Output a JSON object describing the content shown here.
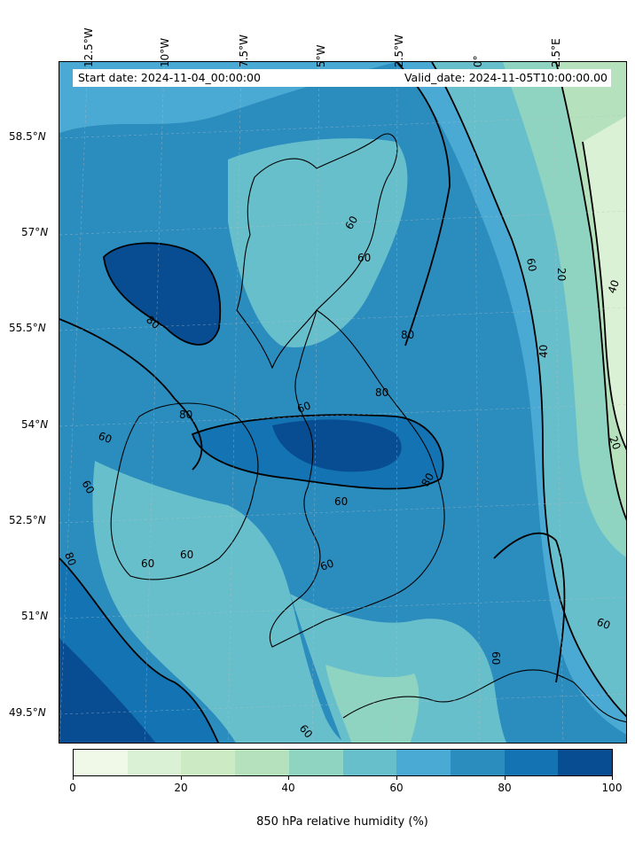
{
  "map": {
    "title_start": "Start date: 2024-11-04_00:00:00",
    "title_valid": "Valid_date: 2024-11-05T10:00:00.00",
    "lon_labels": [
      "12.5°W",
      "10°W",
      "7.5°W",
      "5°W",
      "2.5°W",
      "0°",
      "2.5°E"
    ],
    "lat_labels": [
      {
        "deg": "58.5°",
        "hemi": "N"
      },
      {
        "deg": "57°",
        "hemi": "N"
      },
      {
        "deg": "55.5°",
        "hemi": "N"
      },
      {
        "deg": "54°",
        "hemi": "N"
      },
      {
        "deg": "52.5°",
        "hemi": "N"
      },
      {
        "deg": "51°",
        "hemi": "N"
      },
      {
        "deg": "49.5°",
        "hemi": "N"
      }
    ],
    "contour_labels": [
      "60",
      "60",
      "60",
      "20",
      "40",
      "40",
      "20",
      "80",
      "80",
      "60",
      "80",
      "60",
      "80",
      "60",
      "80",
      "60",
      "60",
      "60",
      "60",
      "60",
      "60",
      "60",
      "80"
    ]
  },
  "colorbar": {
    "title": "850 hPa relative humidity (%)",
    "tick_labels": [
      "0",
      "20",
      "40",
      "60",
      "80",
      "100"
    ],
    "colors": [
      "#f0f9e8",
      "#dbf1d5",
      "#ccebc5",
      "#b5e1bc",
      "#8fd3c1",
      "#68bfcc",
      "#4aaad3",
      "#2b8cbe",
      "#1474b3",
      "#084d91"
    ]
  }
}
